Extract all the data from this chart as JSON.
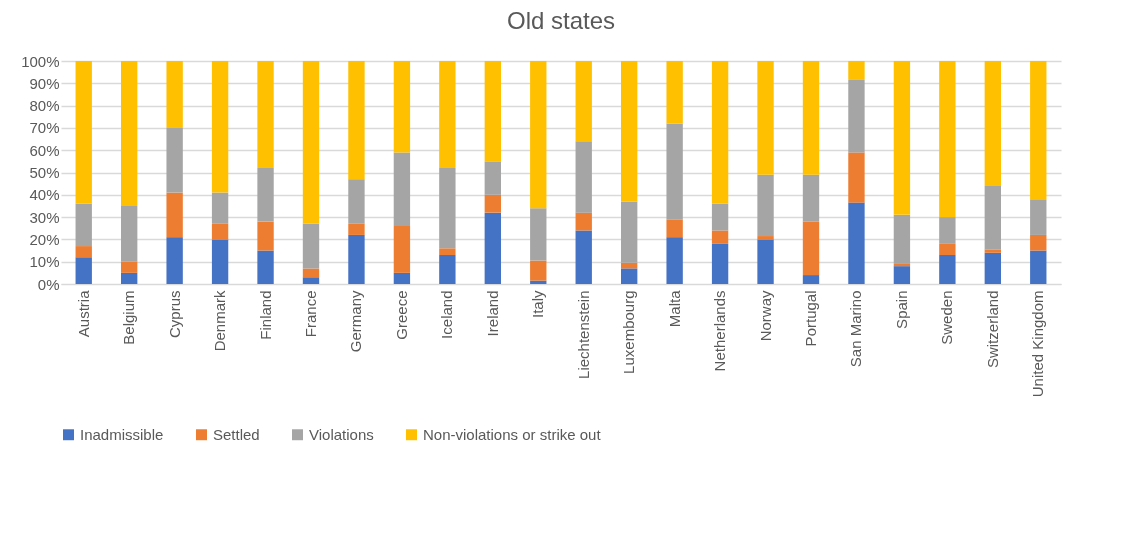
{
  "chart_data": {
    "type": "bar",
    "title": "Old states",
    "stacked": true,
    "grid": "y",
    "legend": "bottom",
    "categories": [
      "Austria",
      "Belgium",
      "Cyprus",
      "Denmark",
      "Finland",
      "France",
      "Germany",
      "Greece",
      "Iceland",
      "Ireland",
      "Italy",
      "Liechtenstein",
      "Luxembourg",
      "Malta",
      "Netherlands",
      "Norway",
      "Portugal",
      "San Marino",
      "Spain",
      "Sweden",
      "Switzerland",
      "United Kingdom"
    ],
    "ylim": [
      0,
      100
    ],
    "yticks": [
      {
        "value": 0,
        "label": "0%"
      },
      {
        "value": 10,
        "label": "10%"
      },
      {
        "value": 20,
        "label": "20%"
      },
      {
        "value": 30,
        "label": "30%"
      },
      {
        "value": 40,
        "label": "40%"
      },
      {
        "value": 50,
        "label": "50%"
      },
      {
        "value": 60,
        "label": "60%"
      },
      {
        "value": 70,
        "label": "70%"
      },
      {
        "value": 80,
        "label": "80%"
      },
      {
        "value": 90,
        "label": "90%"
      },
      {
        "value": 100,
        "label": "100%"
      }
    ],
    "series": [
      {
        "name": "Inadmissible",
        "color": "#4472c4",
        "values": [
          12,
          5,
          21,
          20,
          15,
          3,
          22,
          5,
          13,
          32,
          1.5,
          24,
          7,
          21,
          18,
          20,
          4,
          36.5,
          8,
          13,
          14,
          15
        ]
      },
      {
        "name": "Settled",
        "color": "#ed7d31",
        "values": [
          5,
          5,
          20,
          7,
          13,
          4,
          5,
          21,
          3,
          8,
          9,
          8,
          2.5,
          8,
          6,
          1.5,
          24,
          22.5,
          1,
          5,
          1.5,
          7
        ]
      },
      {
        "name": "Violations",
        "color": "#a5a5a5",
        "values": [
          19,
          25,
          29,
          14,
          24,
          20,
          20,
          33,
          36,
          15,
          23.5,
          32,
          27.5,
          43,
          12,
          27.5,
          21,
          32.5,
          22,
          12,
          28.5,
          16
        ]
      },
      {
        "name": "Non-violations or strike out",
        "color": "#ffc000",
        "values": [
          64,
          65,
          30,
          59,
          48,
          73,
          53,
          41,
          48,
          45,
          66,
          36,
          63,
          28,
          64,
          51,
          51,
          8.5,
          69,
          70,
          56,
          62
        ]
      }
    ]
  }
}
